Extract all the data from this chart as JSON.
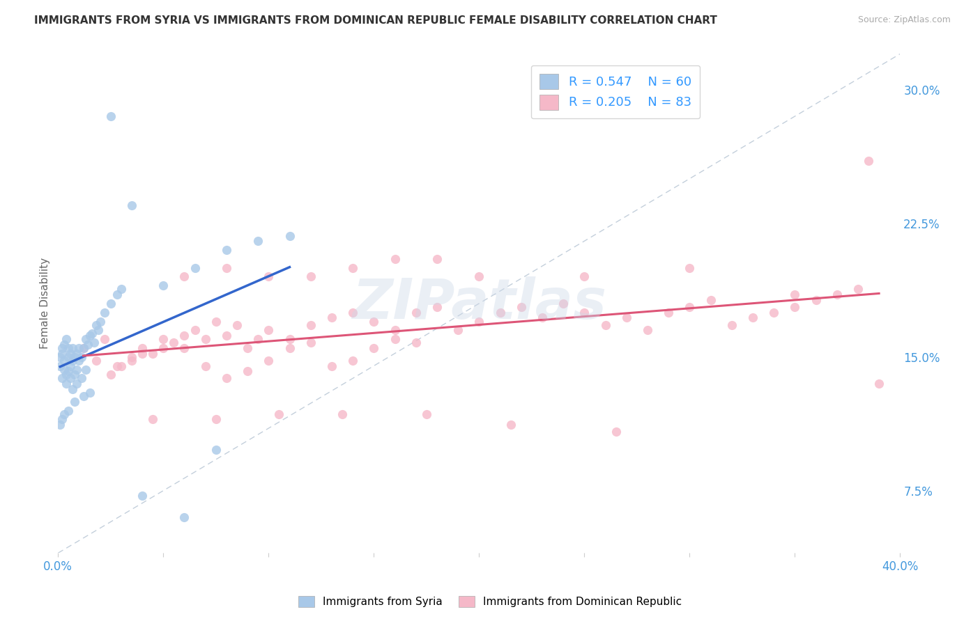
{
  "title": "IMMIGRANTS FROM SYRIA VS IMMIGRANTS FROM DOMINICAN REPUBLIC FEMALE DISABILITY CORRELATION CHART",
  "source": "Source: ZipAtlas.com",
  "ylabel": "Female Disability",
  "xlim": [
    0.0,
    0.4
  ],
  "ylim": [
    0.04,
    0.32
  ],
  "syria_R": 0.547,
  "syria_N": 60,
  "dr_R": 0.205,
  "dr_N": 83,
  "syria_color": "#a8c8e8",
  "dr_color": "#f5b8c8",
  "syria_line_color": "#3366cc",
  "dr_line_color": "#dd5577",
  "legend_text_color": "#3399ff",
  "title_color": "#333333",
  "watermark": "ZIPatlas",
  "background_color": "#ffffff",
  "grid_color": "#dddddd",
  "syria_x": [
    0.001,
    0.001,
    0.002,
    0.002,
    0.002,
    0.003,
    0.003,
    0.003,
    0.004,
    0.004,
    0.004,
    0.005,
    0.005,
    0.005,
    0.006,
    0.006,
    0.006,
    0.007,
    0.007,
    0.008,
    0.008,
    0.009,
    0.009,
    0.01,
    0.01,
    0.011,
    0.012,
    0.013,
    0.014,
    0.015,
    0.016,
    0.018,
    0.02,
    0.022,
    0.025,
    0.028,
    0.03,
    0.015,
    0.012,
    0.008,
    0.005,
    0.003,
    0.002,
    0.001,
    0.007,
    0.009,
    0.011,
    0.013,
    0.017,
    0.019,
    0.05,
    0.065,
    0.08,
    0.095,
    0.11,
    0.025,
    0.04,
    0.06,
    0.075,
    0.035
  ],
  "syria_y": [
    0.145,
    0.15,
    0.138,
    0.152,
    0.155,
    0.143,
    0.148,
    0.157,
    0.135,
    0.14,
    0.16,
    0.142,
    0.15,
    0.155,
    0.138,
    0.145,
    0.152,
    0.148,
    0.155,
    0.14,
    0.15,
    0.143,
    0.152,
    0.148,
    0.155,
    0.15,
    0.155,
    0.16,
    0.157,
    0.162,
    0.163,
    0.168,
    0.17,
    0.175,
    0.18,
    0.185,
    0.188,
    0.13,
    0.128,
    0.125,
    0.12,
    0.118,
    0.115,
    0.112,
    0.132,
    0.135,
    0.138,
    0.143,
    0.158,
    0.165,
    0.19,
    0.2,
    0.21,
    0.215,
    0.218,
    0.285,
    0.072,
    0.06,
    0.098,
    0.235
  ],
  "dr_x": [
    0.012,
    0.018,
    0.022,
    0.028,
    0.035,
    0.04,
    0.045,
    0.05,
    0.055,
    0.06,
    0.065,
    0.07,
    0.075,
    0.08,
    0.085,
    0.09,
    0.095,
    0.1,
    0.11,
    0.12,
    0.13,
    0.14,
    0.15,
    0.16,
    0.17,
    0.18,
    0.19,
    0.2,
    0.21,
    0.22,
    0.23,
    0.24,
    0.25,
    0.26,
    0.27,
    0.28,
    0.29,
    0.3,
    0.31,
    0.32,
    0.33,
    0.34,
    0.35,
    0.36,
    0.37,
    0.38,
    0.025,
    0.03,
    0.035,
    0.04,
    0.05,
    0.06,
    0.07,
    0.08,
    0.09,
    0.1,
    0.11,
    0.12,
    0.13,
    0.14,
    0.15,
    0.16,
    0.17,
    0.06,
    0.08,
    0.1,
    0.12,
    0.14,
    0.16,
    0.18,
    0.2,
    0.25,
    0.3,
    0.35,
    0.39,
    0.045,
    0.075,
    0.105,
    0.135,
    0.175,
    0.215,
    0.265,
    0.385
  ],
  "dr_y": [
    0.155,
    0.148,
    0.16,
    0.145,
    0.15,
    0.155,
    0.152,
    0.16,
    0.158,
    0.155,
    0.165,
    0.16,
    0.17,
    0.162,
    0.168,
    0.155,
    0.16,
    0.165,
    0.16,
    0.168,
    0.172,
    0.175,
    0.17,
    0.165,
    0.175,
    0.178,
    0.165,
    0.17,
    0.175,
    0.178,
    0.172,
    0.18,
    0.175,
    0.168,
    0.172,
    0.165,
    0.175,
    0.178,
    0.182,
    0.168,
    0.172,
    0.175,
    0.178,
    0.182,
    0.185,
    0.188,
    0.14,
    0.145,
    0.148,
    0.152,
    0.155,
    0.162,
    0.145,
    0.138,
    0.142,
    0.148,
    0.155,
    0.158,
    0.145,
    0.148,
    0.155,
    0.16,
    0.158,
    0.195,
    0.2,
    0.195,
    0.195,
    0.2,
    0.205,
    0.205,
    0.195,
    0.195,
    0.2,
    0.185,
    0.135,
    0.115,
    0.115,
    0.118,
    0.118,
    0.118,
    0.112,
    0.108,
    0.26
  ]
}
